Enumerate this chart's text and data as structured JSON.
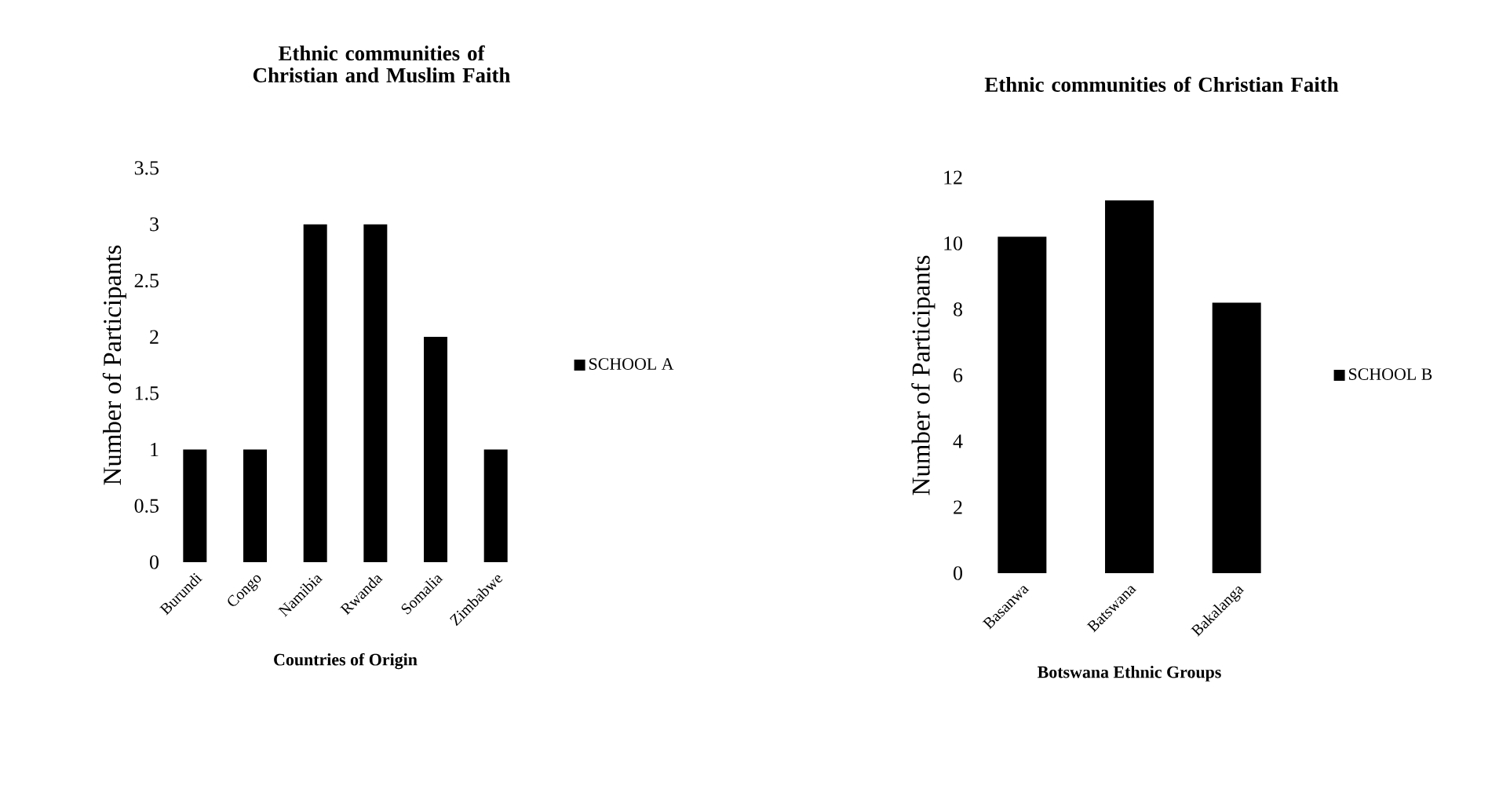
{
  "chart_data": [
    {
      "type": "bar",
      "title": "Ethnic communities of Christian and Muslim Faith",
      "xlabel": "Countries of Origin",
      "ylabel": "Number of  Participants",
      "categories": [
        "Burundi",
        "Congo",
        "Namibia",
        "Rwanda",
        "Somalia",
        "Zimbabwe"
      ],
      "series": [
        {
          "name": "SCHOOL A",
          "color": "#000000",
          "values": [
            1,
            1,
            3,
            3,
            2,
            1
          ]
        }
      ],
      "ylim": [
        0,
        3.5
      ],
      "yticks": [
        0,
        0.5,
        1,
        1.5,
        2,
        2.5,
        3,
        3.5
      ],
      "legend": "right"
    },
    {
      "type": "bar",
      "title": "Ethnic communities of Christian Faith",
      "xlabel": "Botswana Ethnic Groups",
      "ylabel": "Number of  Participants",
      "categories": [
        "Basanwa",
        "Batswana",
        "Bakalanga"
      ],
      "series": [
        {
          "name": "SCHOOL B",
          "color": "#000000",
          "values": [
            10.2,
            11.3,
            8.2
          ]
        }
      ],
      "ylim": [
        0,
        12
      ],
      "yticks": [
        0,
        2,
        4,
        6,
        8,
        10,
        12
      ],
      "legend": "right"
    }
  ]
}
